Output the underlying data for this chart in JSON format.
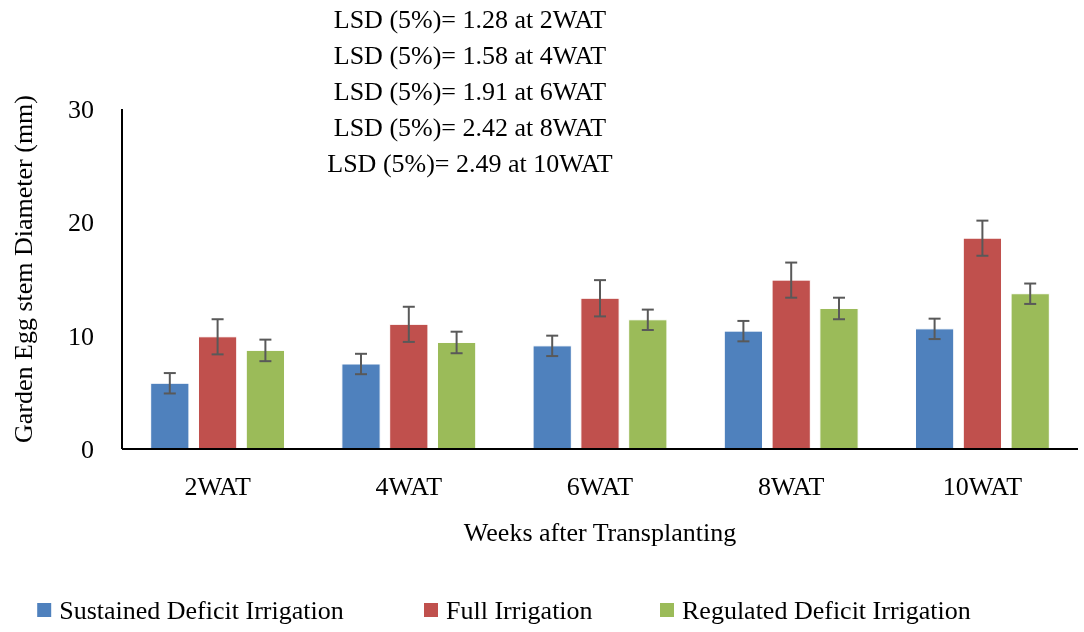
{
  "chart_data": {
    "type": "bar",
    "xlabel": "Weeks after Transplanting",
    "ylabel": "Garden Egg stem Diameter (mm)",
    "annotations": [
      "LSD (5%)= 1.28 at 2WAT",
      "LSD (5%)= 1.58 at 4WAT",
      "LSD (5%)= 1.91 at 6WAT",
      "LSD (5%)= 2.42 at 8WAT",
      "LSD (5%)= 2.49 at 10WAT"
    ],
    "categories": [
      "2WAT",
      "4WAT",
      "6WAT",
      "8WAT",
      "10WAT"
    ],
    "series": [
      {
        "name": "Sustained Deficit Irrigation",
        "color": "#4f81bd",
        "values": [
          5.8,
          7.5,
          9.1,
          10.4,
          10.6
        ],
        "errors": [
          0.9,
          0.9,
          0.9,
          0.9,
          0.9
        ]
      },
      {
        "name": "Full Irrigation",
        "color": "#c0504d",
        "values": [
          9.9,
          11.0,
          13.3,
          14.9,
          18.6
        ],
        "errors": [
          1.55,
          1.55,
          1.6,
          1.55,
          1.55
        ]
      },
      {
        "name": "Regulated Deficit Irrigation",
        "color": "#9bbb59",
        "values": [
          8.7,
          9.4,
          11.4,
          12.4,
          13.7
        ],
        "errors": [
          0.95,
          0.95,
          0.9,
          0.95,
          0.9
        ]
      }
    ],
    "ylim": [
      0,
      30
    ],
    "yticks": [
      0,
      10,
      20,
      30
    ],
    "grid": false,
    "legend": "bottom"
  }
}
